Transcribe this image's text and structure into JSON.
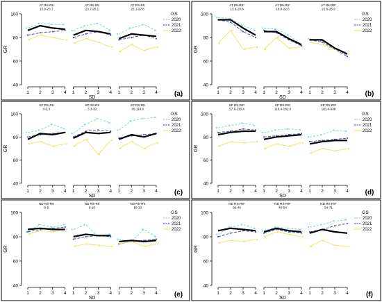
{
  "colors": {
    "mean": "#000000",
    "y2020": "#7fd9d4",
    "y2021": "#4a55b8",
    "y2022": "#f2e46a",
    "frame": "#000000"
  },
  "legend": {
    "title": "GS",
    "labels": [
      "2020",
      "2021",
      "2022"
    ]
  },
  "chart_data": [
    {
      "type": "line",
      "panel": "(a)",
      "xlabel": "SD",
      "ylabel": "GR",
      "x": [
        1,
        2,
        3,
        4
      ],
      "ylim": [
        40,
        100
      ],
      "yticks": [
        40,
        60,
        80,
        100
      ],
      "facets": [
        {
          "title": [
            "AT RS-R6",
            "15.9-23.7"
          ],
          "mean": [
            86,
            90,
            88,
            87
          ],
          "series": [
            {
              "name": "2020",
              "values": [
                88,
                92,
                91,
                91
              ]
            },
            {
              "name": "2021",
              "values": [
                82,
                84,
                85,
                86
              ]
            },
            {
              "name": "2022",
              "values": [
                78,
                82,
                80,
                78
              ]
            }
          ]
        },
        {
          "title": [
            "AT RS-R6",
            "23.7-25.1"
          ],
          "mean": [
            82,
            86,
            85,
            83
          ],
          "series": [
            {
              "name": "2020",
              "values": [
                86,
                90,
                92,
                86
              ]
            },
            {
              "name": "2021",
              "values": [
                80,
                83,
                85,
                82
              ]
            },
            {
              "name": "2022",
              "values": [
                75,
                79,
                76,
                72
              ]
            }
          ]
        },
        {
          "title": [
            "AT RS-R6",
            "25.1-27.8"
          ],
          "mean": [
            79,
            83,
            82,
            81
          ],
          "series": [
            {
              "name": "2020",
              "values": [
                83,
                88,
                91,
                86
              ]
            },
            {
              "name": "2021",
              "values": [
                78,
                80,
                82,
                79
              ]
            },
            {
              "name": "2022",
              "values": [
                68,
                74,
                69,
                72
              ]
            }
          ]
        }
      ]
    },
    {
      "type": "line",
      "panel": "(b)",
      "xlabel": "SD",
      "ylabel": "GR",
      "x": [
        1,
        2,
        3,
        4
      ],
      "ylim": [
        40,
        100
      ],
      "yticks": [
        40,
        60,
        80,
        100
      ],
      "facets": [
        {
          "title": [
            "AT R6-R9*",
            "13.9-19.8"
          ],
          "mean": [
            95,
            95,
            88,
            82
          ],
          "series": [
            {
              "name": "2020",
              "values": [
                97,
                96,
                90,
                86
              ]
            },
            {
              "name": "2021",
              "values": [
                95,
                93,
                85,
                80
              ]
            },
            {
              "name": "2022",
              "values": [
                75,
                86,
                70,
                72
              ]
            }
          ]
        },
        {
          "title": [
            "AT R6-R9*",
            "19.8-22.6"
          ],
          "mean": [
            85,
            85,
            79,
            74
          ],
          "series": [
            {
              "name": "2020",
              "values": [
                88,
                87,
                82,
                74
              ]
            },
            {
              "name": "2021",
              "values": [
                86,
                84,
                78,
                73
              ]
            },
            {
              "name": "2022",
              "values": [
                70,
                80,
                71,
                72
              ]
            }
          ]
        },
        {
          "title": [
            "AT R6-R9*",
            "22.6-25.9"
          ],
          "mean": [
            78,
            78,
            71,
            66
          ],
          "series": [
            {
              "name": "2020",
              "values": [
                79,
                77,
                71,
                65
              ]
            },
            {
              "name": "2021",
              "values": [
                78,
                76,
                70,
                64
              ]
            },
            {
              "name": "2022",
              "values": [
                76,
                74,
                70,
                66
              ]
            }
          ]
        }
      ]
    },
    {
      "type": "line",
      "panel": "(c)",
      "xlabel": "SD",
      "ylabel": "GR",
      "x": [
        1,
        2,
        3,
        4
      ],
      "ylim": [
        40,
        100
      ],
      "yticks": [
        40,
        60,
        80,
        100
      ],
      "facets": [
        {
          "title": [
            "SP RS-R6",
            "0-3.3"
          ],
          "mean": [
            78,
            83,
            82,
            84
          ],
          "series": [
            {
              "name": "2020",
              "values": [
                84,
                86,
                91,
                87
              ]
            },
            {
              "name": "2021",
              "values": [
                80,
                82,
                83,
                84
              ]
            },
            {
              "name": "2022",
              "values": [
                74,
                76,
                72,
                74
              ]
            }
          ]
        },
        {
          "title": [
            "SP RS-R6",
            "3.3-30"
          ],
          "mean": [
            79,
            84,
            83,
            84
          ],
          "series": [
            {
              "name": "2020",
              "values": [
                83,
                91,
                96,
                92
              ]
            },
            {
              "name": "2021",
              "values": [
                80,
                85,
                86,
                85
              ]
            },
            {
              "name": "2022",
              "values": [
                72,
                78,
                65,
                77
              ]
            }
          ]
        },
        {
          "title": [
            "SP RS-R6",
            "30-118.6"
          ],
          "mean": [
            78,
            82,
            80,
            83
          ],
          "series": [
            {
              "name": "2020",
              "values": [
                86,
                94,
                96,
                97
              ]
            },
            {
              "name": "2021",
              "values": [
                79,
                81,
                82,
                83
              ]
            },
            {
              "name": "2022",
              "values": [
                70,
                76,
                70,
                75
              ]
            }
          ]
        }
      ]
    },
    {
      "type": "line",
      "panel": "(d)",
      "xlabel": "SD",
      "ylabel": "GR",
      "x": [
        1,
        2,
        3,
        4
      ],
      "ylim": [
        40,
        100
      ],
      "yticks": [
        40,
        60,
        80,
        100
      ],
      "facets": [
        {
          "title": [
            "SP RS-R9*",
            "57.6-118.4"
          ],
          "mean": [
            82,
            84,
            85,
            85
          ],
          "series": [
            {
              "name": "2020",
              "values": [
                88,
                90,
                92,
                90
              ]
            },
            {
              "name": "2021",
              "values": [
                84,
                85,
                87,
                86
              ]
            },
            {
              "name": "2022",
              "values": [
                72,
                76,
                75,
                76
              ]
            }
          ]
        },
        {
          "title": [
            "SP RS-R9*",
            "118.4-181.4"
          ],
          "mean": [
            78,
            80,
            81,
            82
          ],
          "series": [
            {
              "name": "2020",
              "values": [
                84,
                86,
                87,
                86
              ]
            },
            {
              "name": "2021",
              "values": [
                80,
                81,
                82,
                83
              ]
            },
            {
              "name": "2022",
              "values": [
                70,
                74,
                72,
                75
              ]
            }
          ]
        },
        {
          "title": [
            "SP RS-R9*",
            "181.4-448"
          ],
          "mean": [
            74,
            76,
            77,
            77
          ],
          "series": [
            {
              "name": "2020",
              "values": [
                80,
                82,
                86,
                85
              ]
            },
            {
              "name": "2021",
              "values": [
                76,
                77,
                78,
                79
              ]
            },
            {
              "name": "2022",
              "values": [
                66,
                70,
                68,
                70
              ]
            }
          ]
        }
      ]
    },
    {
      "type": "line",
      "panel": "(e)",
      "xlabel": "SD",
      "ylabel": "GR",
      "x": [
        1,
        2,
        3,
        4
      ],
      "ylim": [
        40,
        100
      ],
      "yticks": [
        40,
        60,
        80,
        100
      ],
      "facets": [
        {
          "title": [
            "ND RS-R6",
            "6-9"
          ],
          "mean": [
            86,
            87,
            86,
            86
          ],
          "series": [
            {
              "name": "2020",
              "values": [
                84,
                90,
                88,
                90
              ]
            },
            {
              "name": "2021",
              "values": [
                84,
                86,
                87,
                88
              ]
            },
            {
              "name": "2022",
              "values": [
                82,
                85,
                84,
                86
              ]
            }
          ]
        },
        {
          "title": [
            "ND RS-R6",
            "9-10"
          ],
          "mean": [
            80,
            82,
            81,
            81
          ],
          "series": [
            {
              "name": "2020",
              "values": [
                86,
                90,
                80,
                82
              ]
            },
            {
              "name": "2021",
              "values": [
                78,
                80,
                81,
                80
              ]
            },
            {
              "name": "2022",
              "values": [
                72,
                74,
                73,
                72
              ]
            }
          ]
        },
        {
          "title": [
            "ND RS-R6",
            "10-13"
          ],
          "mean": [
            76,
            77,
            76,
            77
          ],
          "series": [
            {
              "name": "2020",
              "values": [
                78,
                76,
                86,
                80
              ]
            },
            {
              "name": "2021",
              "values": [
                74,
                76,
                77,
                78
              ]
            },
            {
              "name": "2022",
              "values": [
                74,
                76,
                72,
                74
              ]
            }
          ]
        }
      ]
    },
    {
      "type": "line",
      "panel": "(f)",
      "xlabel": "SD",
      "ylabel": "GR",
      "x": [
        1,
        2,
        3,
        4
      ],
      "ylim": [
        40,
        100
      ],
      "yticks": [
        40,
        60,
        80,
        100
      ],
      "facets": [
        {
          "title": [
            "ND RS-R9*",
            "30-46"
          ],
          "mean": [
            85,
            87,
            86,
            85
          ],
          "series": [
            {
              "name": "2020",
              "values": [
                82,
                88,
                90,
                87
              ]
            },
            {
              "name": "2021",
              "values": [
                80,
                83,
                85,
                84
              ]
            },
            {
              "name": "2022",
              "values": [
                75,
                77,
                76,
                78
              ]
            }
          ]
        },
        {
          "title": [
            "ND RS-R9*",
            "46-54"
          ],
          "mean": [
            84,
            87,
            85,
            84
          ],
          "series": [
            {
              "name": "2020",
              "values": [
                85,
                88,
                87,
                86
              ]
            },
            {
              "name": "2021",
              "values": [
                83,
                86,
                84,
                83
              ]
            },
            {
              "name": "2022",
              "values": [
                80,
                84,
                82,
                80
              ]
            }
          ]
        },
        {
          "title": [
            "ND RS-R9*",
            "54-71"
          ],
          "mean": [
            83,
            86,
            84,
            83
          ],
          "series": [
            {
              "name": "2020",
              "values": [
                88,
                90,
                93,
                94
              ]
            },
            {
              "name": "2021",
              "values": [
                84,
                86,
                89,
                91
              ]
            },
            {
              "name": "2022",
              "values": [
                72,
                77,
                73,
                72
              ]
            }
          ]
        }
      ]
    }
  ]
}
